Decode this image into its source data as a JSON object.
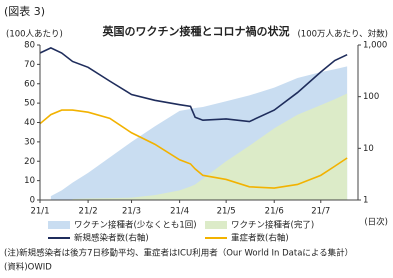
{
  "chart_data": {
    "type": "combo",
    "figure_label": "(図表 3)",
    "title": "英国のワクチン接種とコロナ禍の状況",
    "y_label": "(100人あたり)",
    "y2_label": "(100万人あたり、対数)",
    "x_unit": "(日次)",
    "notes": [
      "(注)新規感染者は後方7日移動平均、重症者はICU利用者（Our World In Dataによる集計）",
      "(資料)OWID"
    ],
    "x": [
      0,
      7,
      14,
      21,
      31,
      45,
      59,
      74,
      90,
      97,
      100,
      105,
      120,
      135,
      151,
      166,
      181,
      190,
      198
    ],
    "xlim": [
      0,
      205
    ],
    "xticks": [
      {
        "value": 0,
        "label": "21/1"
      },
      {
        "value": 31,
        "label": "21/2"
      },
      {
        "value": 59,
        "label": "21/3"
      },
      {
        "value": 90,
        "label": "21/4"
      },
      {
        "value": 120,
        "label": "21/5"
      },
      {
        "value": 151,
        "label": "21/6"
      },
      {
        "value": 181,
        "label": "21/7"
      }
    ],
    "ylim": [
      0,
      80
    ],
    "yticks": [
      0,
      10,
      20,
      30,
      40,
      50,
      60,
      70,
      80
    ],
    "y2lim": [
      1,
      1000
    ],
    "y2ticks": [
      1,
      10,
      100,
      {
        "value": 1000,
        "label": "1,000"
      }
    ],
    "y2log": true,
    "series": [
      {
        "name": "ワクチン接種者(少なくとも1回)",
        "style": "area",
        "color": "#c9ddf1",
        "values": [
          null,
          2,
          5,
          9,
          14,
          22,
          30,
          38,
          46,
          47,
          47.5,
          48,
          51,
          54,
          58,
          63,
          66,
          67.5,
          69
        ]
      },
      {
        "name": "ワクチン接種者(完了)",
        "style": "area",
        "color": "#dcebc8",
        "values": [
          null,
          null,
          null,
          0.5,
          0.8,
          1,
          1.2,
          2.5,
          5,
          7,
          8,
          11,
          20,
          28,
          37,
          44,
          49,
          52,
          55
        ]
      },
      {
        "name": "新規感染者数(右軸)",
        "style": "line",
        "axis": "y2",
        "color": "#1f2d5c",
        "values": [
          700,
          880,
          700,
          480,
          370,
          200,
          110,
          85,
          70,
          65,
          40,
          35,
          37,
          33,
          55,
          120,
          300,
          500,
          650
        ]
      },
      {
        "name": "重症者数(右軸)",
        "style": "line",
        "axis": "y2",
        "color": "#f2b200",
        "values": [
          30,
          45,
          55,
          55,
          50,
          38,
          20,
          12,
          6,
          5,
          4,
          3,
          2.5,
          1.8,
          1.7,
          2,
          3,
          4.5,
          6.5
        ]
      }
    ]
  }
}
